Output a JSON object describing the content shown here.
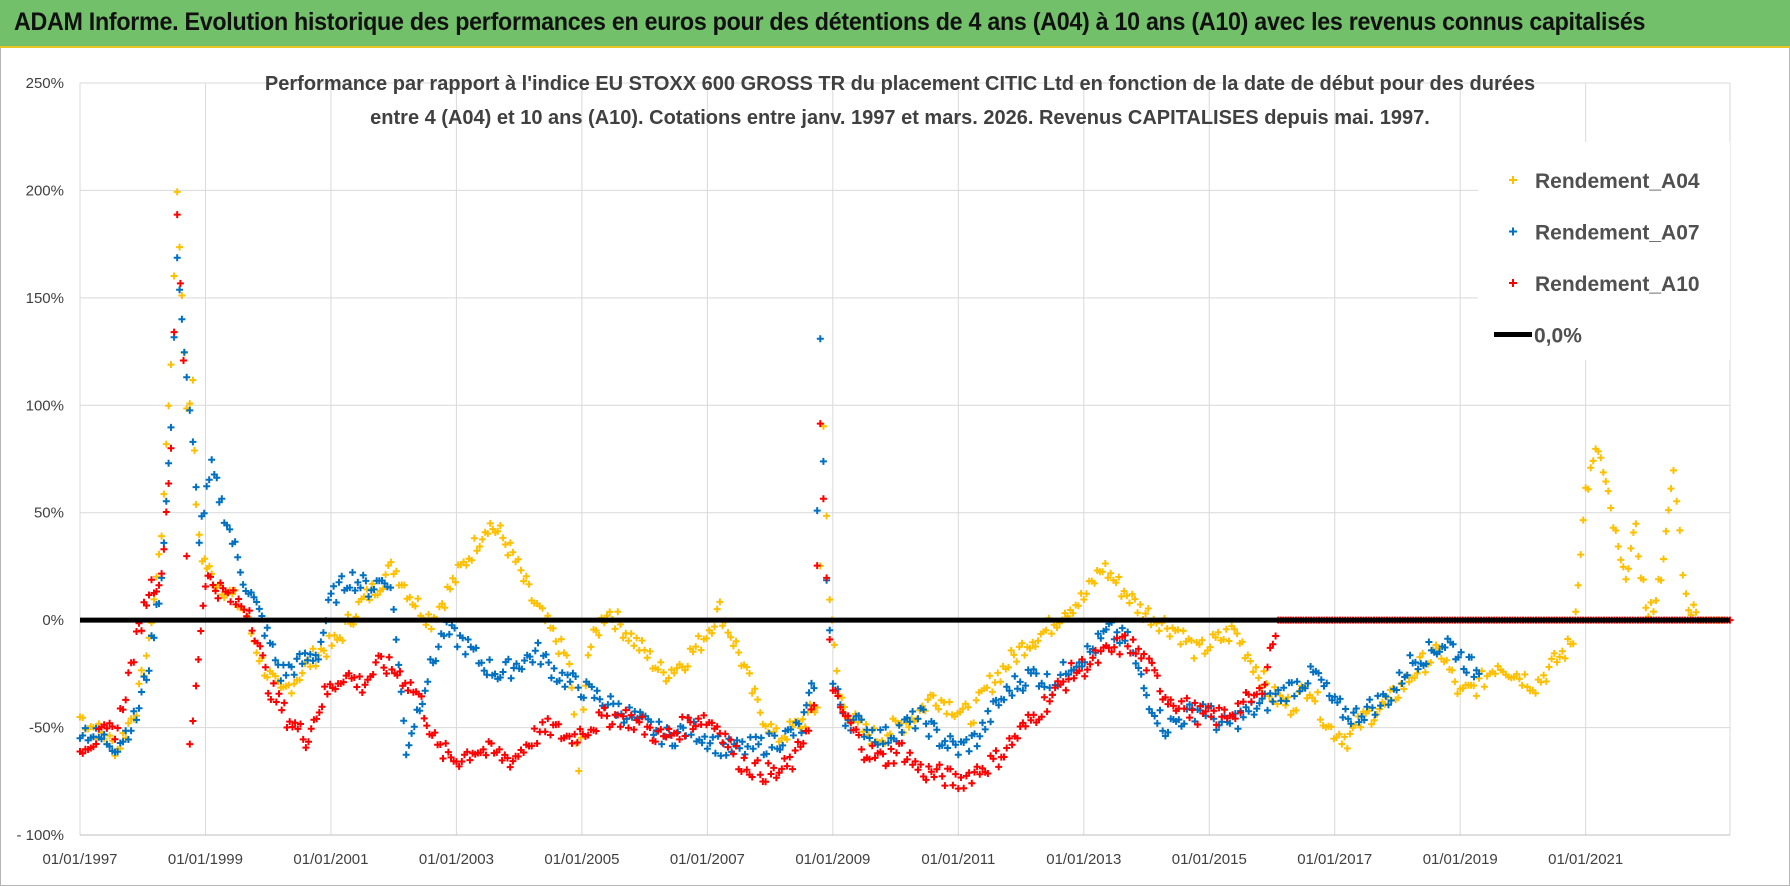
{
  "banner": {
    "title": "ADAM Informe. Evolution historique des performances en euros pour des détentions de 4 ans (A04) à 10 ans (A10) avec les revenus connus capitalisés"
  },
  "colors": {
    "banner_bg": "#73c06b",
    "banner_border": "#e8c425",
    "a04": "#ffc000",
    "a07": "#0070c0",
    "a10": "#ff0000",
    "zero_line": "#000000",
    "grid": "#d9d9d9"
  },
  "chart_data": {
    "type": "scatter",
    "title_line1": "Performance par rapport à l'indice EU STOXX 600 GROSS TR  du placement CITIC Ltd en fonction de la date de début pour des durées",
    "title_line2": "entre 4 (A04) et 10 ans (A10).  Cotations entre janv. 1997 et mars. 2026.  Revenus CAPITALISES  depuis mai. 1997.",
    "xlabel": "",
    "ylabel": "",
    "x_range": [
      1997.0,
      2023.3
    ],
    "ylim": [
      -100,
      250
    ],
    "y_ticks": [
      -100,
      -50,
      0,
      50,
      100,
      150,
      200,
      250
    ],
    "y_tick_labels": [
      "- 100%",
      "-50%",
      "0%",
      "50%",
      "100%",
      "150%",
      "200%",
      "250%"
    ],
    "x_ticks": [
      1997,
      1999,
      2001,
      2003,
      2005,
      2007,
      2009,
      2011,
      2013,
      2015,
      2017,
      2019,
      2021
    ],
    "x_tick_labels": [
      "01/01/1997",
      "01/01/1999",
      "01/01/2001",
      "01/01/2003",
      "01/01/2005",
      "01/01/2007",
      "01/01/2009",
      "01/01/2011",
      "01/01/2013",
      "01/01/2015",
      "01/01/2017",
      "01/01/2019",
      "01/01/2021"
    ],
    "grid": true,
    "legend_position": "top-right",
    "reference_line": {
      "name": "0,0%",
      "value": 0
    },
    "series": [
      {
        "name": "Rendement_A04",
        "marker": "+",
        "color": "#ffc000",
        "x": [
          1997.0,
          1997.3,
          1997.6,
          1997.9,
          1998.1,
          1998.3,
          1998.45,
          1998.55,
          1998.7,
          1998.8,
          1998.85,
          1998.95,
          1999.1,
          1999.3,
          1999.6,
          1999.9,
          2000.2,
          2000.5,
          2000.8,
          2001.1,
          2001.4,
          2001.7,
          2002.0,
          2002.3,
          2002.6,
          2002.9,
          2003.2,
          2003.5,
          2003.7,
          2003.9,
          2004.2,
          2004.5,
          2004.8,
          2004.95,
          2005.1,
          2005.4,
          2005.7,
          2006.0,
          2006.3,
          2006.6,
          2006.9,
          2007.2,
          2007.5,
          2007.8,
          2008.1,
          2008.4,
          2008.6,
          2008.75,
          2008.85,
          2008.95,
          2009.1,
          2009.4,
          2009.7,
          2010.0,
          2010.3,
          2010.6,
          2010.9,
          2011.2,
          2011.5,
          2011.8,
          2012.1,
          2012.4,
          2012.7,
          2013.0,
          2013.3,
          2013.6,
          2013.9,
          2014.2,
          2014.5,
          2014.8,
          2015.1,
          2015.4,
          2015.7,
          2016.0,
          2016.3,
          2016.6,
          2016.9,
          2017.2,
          2017.5,
          2017.8,
          2018.1,
          2018.4,
          2018.7,
          2019.0,
          2019.3,
          2019.6,
          2019.9,
          2020.2,
          2020.5,
          2020.8,
          2021.0,
          2021.2,
          2021.4,
          2021.6,
          2021.8,
          2022.0,
          2022.2,
          2022.4,
          2022.5,
          2022.6,
          2022.8,
          2023.0,
          2023.2
        ],
        "y": [
          -45,
          -52,
          -60,
          -40,
          -10,
          40,
          120,
          200,
          100,
          110,
          50,
          30,
          20,
          15,
          5,
          -20,
          -35,
          -25,
          -15,
          -10,
          5,
          15,
          25,
          10,
          0,
          15,
          30,
          45,
          40,
          30,
          10,
          -5,
          -20,
          -70,
          -15,
          5,
          -5,
          -15,
          -25,
          -20,
          -10,
          5,
          -15,
          -40,
          -55,
          -50,
          -45,
          -40,
          90,
          10,
          -35,
          -50,
          -55,
          -50,
          -45,
          -35,
          -40,
          -45,
          -30,
          -20,
          -10,
          -5,
          5,
          10,
          25,
          15,
          5,
          0,
          -5,
          -15,
          -10,
          -5,
          -20,
          -35,
          -40,
          -30,
          -50,
          -55,
          -45,
          -40,
          -30,
          -20,
          -15,
          -35,
          -30,
          -20,
          -25,
          -30,
          -20,
          -10,
          60,
          80,
          50,
          20,
          40,
          0,
          20,
          70,
          40,
          10,
          0,
          0,
          0
        ]
      },
      {
        "name": "Rendement_A07",
        "marker": "+",
        "color": "#0070c0",
        "x": [
          1997.0,
          1997.3,
          1997.6,
          1997.9,
          1998.1,
          1998.3,
          1998.45,
          1998.55,
          1998.7,
          1998.8,
          1998.9,
          1999.1,
          1999.3,
          1999.6,
          1999.9,
          2000.2,
          2000.5,
          2000.8,
          2001.0,
          2001.3,
          2001.6,
          2001.9,
          2002.0,
          2002.2,
          2002.5,
          2002.8,
          2003.1,
          2003.4,
          2003.7,
          2004.0,
          2004.3,
          2004.6,
          2004.9,
          2005.2,
          2005.5,
          2005.8,
          2006.1,
          2006.4,
          2006.7,
          2007.0,
          2007.3,
          2007.6,
          2007.9,
          2008.2,
          2008.5,
          2008.7,
          2008.8,
          2008.9,
          2009.0,
          2009.2,
          2009.5,
          2009.8,
          2010.1,
          2010.4,
          2010.7,
          2011.0,
          2011.3,
          2011.6,
          2011.9,
          2012.2,
          2012.5,
          2012.8,
          2013.1,
          2013.4,
          2013.7,
          2014.0,
          2014.3,
          2014.6,
          2014.9,
          2015.2,
          2015.5,
          2015.8,
          2016.1,
          2016.4,
          2016.7,
          2017.0,
          2017.3,
          2017.6,
          2017.9,
          2018.2,
          2018.5,
          2018.8,
          2019.1,
          2019.3
        ],
        "y": [
          -50,
          -55,
          -58,
          -45,
          -20,
          20,
          90,
          170,
          110,
          80,
          40,
          70,
          50,
          20,
          0,
          -25,
          -20,
          -15,
          10,
          20,
          15,
          20,
          5,
          -60,
          -30,
          -5,
          -10,
          -20,
          -25,
          -20,
          -15,
          -25,
          -30,
          -35,
          -40,
          -45,
          -50,
          -55,
          -50,
          -55,
          -60,
          -60,
          -58,
          -55,
          -50,
          -30,
          130,
          20,
          -30,
          -45,
          -50,
          -55,
          -50,
          -45,
          -55,
          -60,
          -55,
          -40,
          -30,
          -25,
          -30,
          -20,
          -15,
          -5,
          -10,
          -35,
          -50,
          -45,
          -40,
          -50,
          -45,
          -40,
          -35,
          -30,
          -25,
          -40,
          -45,
          -40,
          -35,
          -20,
          -15,
          -10,
          -20,
          -25
        ]
      },
      {
        "name": "Rendement_A10",
        "marker": "+",
        "color": "#ff0000",
        "x": [
          1997.0,
          1997.3,
          1997.6,
          1997.9,
          1998.1,
          1998.3,
          1998.45,
          1998.55,
          1998.65,
          1998.75,
          1998.85,
          1999.0,
          1999.2,
          1999.4,
          1999.7,
          2000.0,
          2000.3,
          2000.6,
          2000.9,
          2001.2,
          2001.5,
          2001.8,
          2002.1,
          2002.4,
          2002.7,
          2003.0,
          2003.3,
          2003.6,
          2003.9,
          2004.2,
          2004.5,
          2004.8,
          2005.1,
          2005.4,
          2005.7,
          2006.0,
          2006.3,
          2006.6,
          2006.9,
          2007.2,
          2007.5,
          2007.8,
          2008.1,
          2008.4,
          2008.7,
          2008.8,
          2008.9,
          2009.0,
          2009.2,
          2009.5,
          2009.8,
          2010.1,
          2010.4,
          2010.7,
          2011.0,
          2011.3,
          2011.6,
          2011.9,
          2012.2,
          2012.5,
          2012.8,
          2013.1,
          2013.4,
          2013.7,
          2014.0,
          2014.3,
          2014.6,
          2014.9,
          2015.2,
          2015.5,
          2015.8,
          2016.1,
          2016.5,
          2017.0,
          2017.5,
          2018.0,
          2018.5,
          2019.0,
          2019.5,
          2020.0,
          2020.5,
          2021.0,
          2021.5,
          2022.0,
          2022.5,
          2023.0,
          2023.3
        ],
        "y": [
          -58,
          -55,
          -50,
          -10,
          15,
          20,
          80,
          190,
          120,
          -60,
          -30,
          20,
          15,
          10,
          5,
          -30,
          -45,
          -55,
          -35,
          -25,
          -30,
          -20,
          -25,
          -35,
          -60,
          -65,
          -60,
          -62,
          -65,
          -55,
          -50,
          -55,
          -50,
          -45,
          -45,
          -50,
          -55,
          -50,
          -45,
          -50,
          -65,
          -70,
          -72,
          -65,
          -40,
          90,
          20,
          -35,
          -45,
          -60,
          -65,
          -60,
          -70,
          -72,
          -75,
          -70,
          -65,
          -55,
          -45,
          -35,
          -25,
          -20,
          -15,
          -10,
          -20,
          -35,
          -40,
          -45,
          -45,
          -40,
          -35,
          0,
          0,
          0,
          0,
          0,
          0,
          0,
          0,
          0,
          0,
          0,
          0,
          0,
          0,
          0,
          0
        ]
      }
    ]
  }
}
